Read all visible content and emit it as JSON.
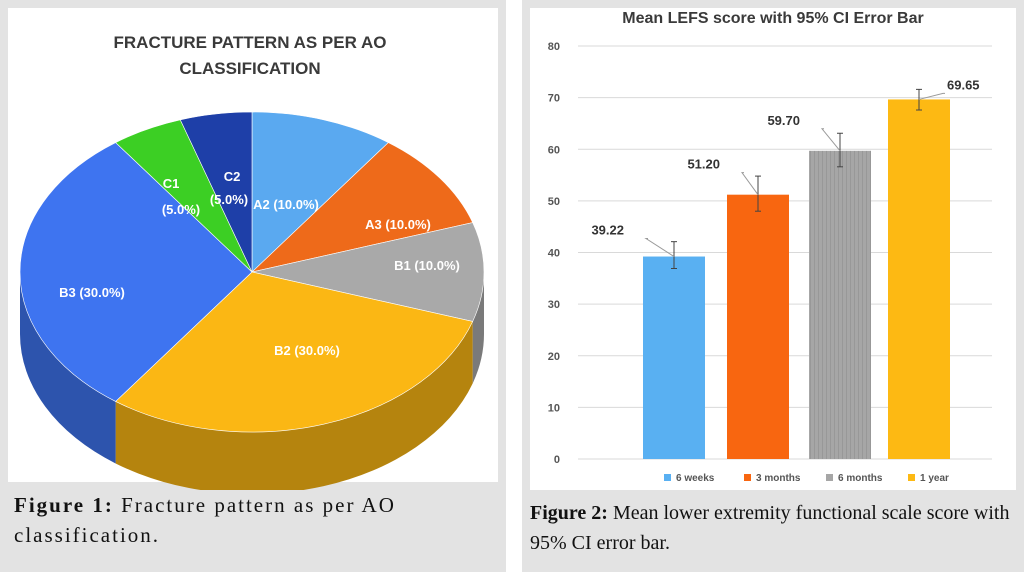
{
  "figure1": {
    "caption_label": "Figure 1:",
    "caption_text": " Fracture pattern as per AO classification."
  },
  "figure2": {
    "caption_label": "Figure 2:",
    "caption_text": " Mean lower extremity functional scale score with 95% CI error bar."
  },
  "colors": {
    "A2": "#5aa9f0",
    "A3": "#ee6a1a",
    "B1": "#a9a9a9",
    "B2": "#fbb714",
    "B3": "#3e74f0",
    "C1": "#3ccf24",
    "C2": "#1e3fa8",
    "bar_6w": "#59b0f2",
    "bar_3m": "#f86610",
    "bar_6m": "#a6a6a6",
    "bar_1y": "#fdb913"
  },
  "chart_data": [
    {
      "type": "pie",
      "title": "FRACTURE PATTERN AS PER AO CLASSIFICATION",
      "title_line1": "FRACTURE PATTERN AS PER AO",
      "title_line2": "CLASSIFICATION",
      "slices": [
        {
          "label": "A2 (10.0%)",
          "category": "A2",
          "value": 10.0
        },
        {
          "label": "A3 (10.0%)",
          "category": "A3",
          "value": 10.0
        },
        {
          "label": "B1 (10.0%)",
          "category": "B1",
          "value": 10.0
        },
        {
          "label": "B2 (30.0%)",
          "category": "B2",
          "value": 30.0
        },
        {
          "label": "B3 (30.0%)",
          "category": "B3",
          "value": 30.0
        },
        {
          "label_line1": "C1",
          "label_line2": "(5.0%)",
          "category": "C1",
          "value": 5.0
        },
        {
          "label_line1": "C2",
          "label_line2": "(5.0%)",
          "category": "C2",
          "value": 5.0
        }
      ]
    },
    {
      "type": "bar",
      "title": "Mean LEFS score with 95% CI Error Bar",
      "categories": [
        "6 weeks",
        "3 months",
        "6 months",
        "1 year"
      ],
      "values": [
        39.22,
        51.2,
        59.7,
        69.65
      ],
      "value_labels": [
        "39.22",
        "51.20",
        "59.70",
        "69.65"
      ],
      "error_low": [
        36.9,
        48.0,
        56.6,
        67.6
      ],
      "error_high": [
        42.1,
        54.8,
        63.1,
        71.6
      ],
      "ylim": [
        0,
        80
      ],
      "yticks": [
        0,
        10,
        20,
        30,
        40,
        50,
        60,
        70,
        80
      ],
      "grid": true,
      "legend_position": "bottom"
    }
  ]
}
